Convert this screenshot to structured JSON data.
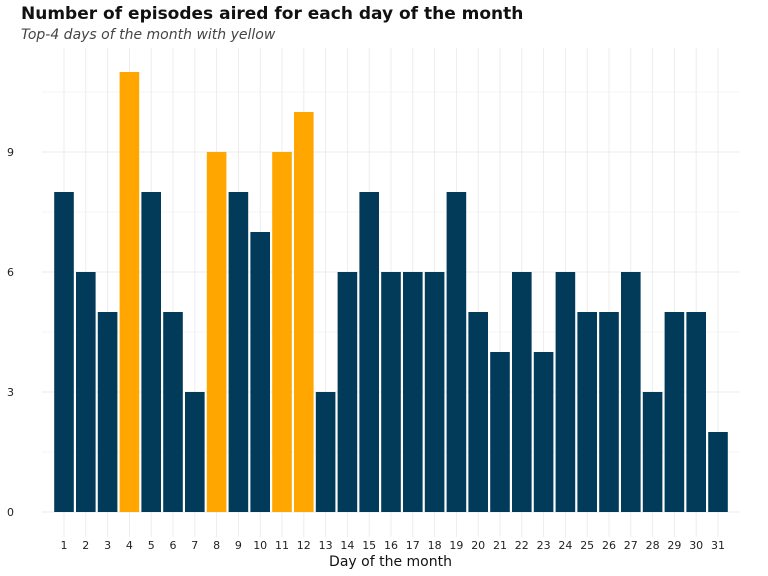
{
  "chart_data": {
    "type": "bar",
    "title": "Number of episodes aired for each day of the month",
    "subtitle": "Top-4 days of the month with yellow",
    "xlabel": "Day of the month",
    "ylabel": "",
    "categories": [
      "1",
      "2",
      "3",
      "4",
      "5",
      "6",
      "7",
      "8",
      "9",
      "10",
      "11",
      "12",
      "13",
      "14",
      "15",
      "16",
      "17",
      "18",
      "19",
      "20",
      "21",
      "22",
      "23",
      "24",
      "25",
      "26",
      "27",
      "28",
      "29",
      "30",
      "31"
    ],
    "values": [
      8,
      6,
      5,
      11,
      8,
      5,
      3,
      9,
      8,
      7,
      9,
      10,
      3,
      6,
      8,
      6,
      6,
      6,
      8,
      5,
      4,
      6,
      4,
      6,
      5,
      5,
      6,
      3,
      5,
      5,
      2
    ],
    "highlighted": [
      "4",
      "8",
      "11",
      "12"
    ],
    "ylim": [
      0,
      11.5
    ],
    "yticks": [
      0,
      3,
      6,
      9
    ],
    "grid": true,
    "legend": "none",
    "colors": {
      "default": "#023a59",
      "highlight": "#ffa600",
      "grid": "#ebebeb"
    }
  }
}
